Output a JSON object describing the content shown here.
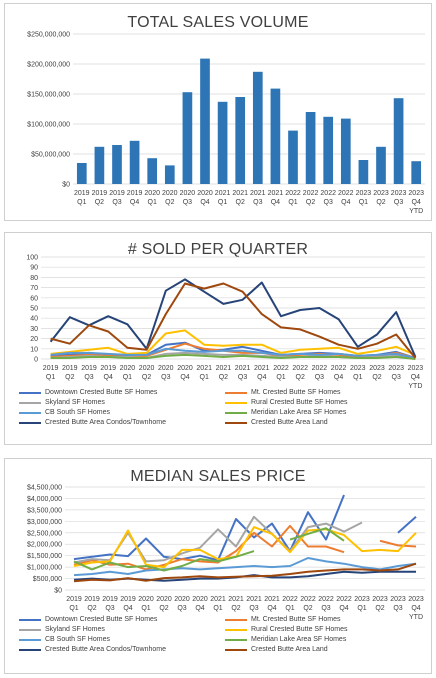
{
  "colors": {
    "bar": "#2e75b6",
    "grid": "#d9d9d9",
    "series": [
      "#4472c4",
      "#ed7d31",
      "#a5a5a5",
      "#ffc000",
      "#5b9bd5",
      "#70ad47",
      "#264478",
      "#9e480e"
    ]
  },
  "quarters": [
    "2019\nQ1",
    "2019\nQ2",
    "2019\nQ3",
    "2019\nQ4",
    "2020\nQ1",
    "2020\nQ2",
    "2020\nQ3",
    "2020\nQ4",
    "2021\nQ1",
    "2021\nQ2",
    "2021\nQ3",
    "2021\nQ4",
    "2022\nQ1",
    "2022\nQ2",
    "2022\nQ3",
    "2022\nQ4",
    "2023\nQ1",
    "2023\nQ2",
    "2023\nQ3",
    "2023\nQ4\nYTD"
  ],
  "chart_data": [
    {
      "type": "bar",
      "title": "TOTAL SALES VOLUME",
      "ylim": [
        0,
        250000000
      ],
      "yticks": [
        0,
        50000000,
        100000000,
        150000000,
        200000000,
        250000000
      ],
      "ytick_labels": [
        "$0",
        "$50,000,000",
        "$100,000,000",
        "$150,000,000",
        "$200,000,000",
        "$250,000,000"
      ],
      "categories": [
        "2019 Q1",
        "2019 Q2",
        "2019 Q3",
        "2019 Q4",
        "2020 Q1",
        "2020 Q2",
        "2020 Q3",
        "2020 Q4",
        "2021 Q1",
        "2021 Q2",
        "2021 Q3",
        "2021 Q4",
        "2022 Q1",
        "2022 Q2",
        "2022 Q3",
        "2022 Q4",
        "2023 Q1",
        "2023 Q2",
        "2023 Q3",
        "2023 Q4 YTD"
      ],
      "values": [
        35000000,
        62000000,
        65000000,
        72000000,
        43000000,
        31000000,
        153000000,
        209000000,
        137000000,
        145000000,
        187000000,
        159000000,
        89000000,
        120000000,
        112000000,
        109000000,
        40000000,
        62000000,
        143000000,
        38000000
      ],
      "grid": true,
      "legend": "none"
    },
    {
      "type": "line",
      "title": "# SOLD PER QUARTER",
      "ylim": [
        0,
        100
      ],
      "yticks": [
        0,
        10,
        20,
        30,
        40,
        50,
        60,
        70,
        80,
        90,
        100
      ],
      "ytick_labels": [
        "0",
        "10",
        "20",
        "30",
        "40",
        "50",
        "60",
        "70",
        "80",
        "90",
        "100"
      ],
      "categories": [
        "2019 Q1",
        "2019 Q2",
        "2019 Q3",
        "2019 Q4",
        "2020 Q1",
        "2020 Q2",
        "2020 Q3",
        "2020 Q4",
        "2021 Q1",
        "2021 Q2",
        "2021 Q3",
        "2021 Q4",
        "2022 Q1",
        "2022 Q2",
        "2022 Q3",
        "2022 Q4",
        "2023 Q1",
        "2023 Q2",
        "2023 Q3",
        "2023 Q4 YTD"
      ],
      "series": [
        {
          "name": "Downtown Crested Butte SF Homes",
          "values": [
            3,
            4,
            6,
            4,
            3,
            4,
            14,
            16,
            8,
            9,
            12,
            8,
            4,
            5,
            6,
            5,
            3,
            4,
            7,
            1
          ]
        },
        {
          "name": "Mt. Crested Butte SF Homes",
          "values": [
            2,
            3,
            4,
            3,
            2,
            3,
            9,
            15,
            10,
            8,
            6,
            6,
            3,
            4,
            5,
            4,
            2,
            3,
            6,
            1
          ]
        },
        {
          "name": "Skyland SF Homes",
          "values": [
            1,
            2,
            3,
            2,
            2,
            1,
            5,
            6,
            5,
            4,
            4,
            3,
            2,
            2,
            3,
            2,
            1,
            2,
            3,
            0
          ]
        },
        {
          "name": "Rural Crested Butte SF Homes",
          "values": [
            5,
            7,
            9,
            11,
            5,
            6,
            25,
            28,
            14,
            13,
            14,
            14,
            6,
            9,
            10,
            11,
            5,
            8,
            12,
            4
          ]
        },
        {
          "name": "CB South SF Homes",
          "values": [
            4,
            6,
            6,
            5,
            4,
            4,
            10,
            8,
            7,
            8,
            8,
            6,
            4,
            5,
            4,
            5,
            3,
            4,
            5,
            1
          ]
        },
        {
          "name": "Meridian Lake Area SF Homes",
          "values": [
            1,
            1,
            2,
            2,
            1,
            1,
            3,
            4,
            3,
            2,
            3,
            2,
            1,
            2,
            2,
            2,
            1,
            1,
            2,
            0
          ]
        },
        {
          "name": "Crested Butte Area Condos/Townhome",
          "values": [
            17,
            41,
            33,
            42,
            34,
            10,
            67,
            78,
            66,
            54,
            58,
            75,
            42,
            48,
            50,
            39,
            12,
            24,
            46,
            2
          ]
        },
        {
          "name": "Crested Butte Area Land",
          "values": [
            20,
            15,
            33,
            27,
            11,
            9,
            44,
            74,
            69,
            74,
            66,
            44,
            31,
            29,
            22,
            14,
            10,
            15,
            24,
            1
          ]
        }
      ],
      "grid": true,
      "legend": "bottom"
    },
    {
      "type": "line",
      "title": "MEDIAN SALES PRICE",
      "ylim": [
        0,
        4500000
      ],
      "yticks": [
        0,
        500000,
        1000000,
        1500000,
        2000000,
        2500000,
        3000000,
        3500000,
        4000000,
        4500000
      ],
      "ytick_labels": [
        "$0",
        "$500,000",
        "$1,000,000",
        "$1,500,000",
        "$2,000,000",
        "$2,500,000",
        "$3,000,000",
        "$3,500,000",
        "$4,000,000",
        "$4,500,000"
      ],
      "categories": [
        "2019 Q1",
        "2019 Q2",
        "2019 Q3",
        "2019 Q4",
        "2020 Q1",
        "2020 Q2",
        "2020 Q3",
        "2020 Q4",
        "2021 Q1",
        "2021 Q2",
        "2021 Q3",
        "2021 Q4",
        "2022 Q1",
        "2022 Q2",
        "2022 Q3",
        "2022 Q4",
        "2023 Q1",
        "2023 Q2",
        "2023 Q3",
        "2023 Q4 YTD"
      ],
      "series": [
        {
          "name": "Downtown Crested Butte SF Homes",
          "values": [
            1350000,
            1450000,
            1550000,
            1480000,
            2250000,
            1450000,
            1350000,
            1500000,
            1300000,
            3100000,
            2300000,
            2900000,
            1700000,
            3400000,
            2200000,
            4150000,
            null,
            null,
            2500000,
            3200000
          ]
        },
        {
          "name": "Mt. Crested Butte SF Homes",
          "values": [
            1100000,
            1300000,
            1100000,
            1150000,
            900000,
            1100000,
            1350000,
            1250000,
            1200000,
            1700000,
            2500000,
            1900000,
            2800000,
            1900000,
            1900000,
            1650000,
            null,
            2150000,
            1950000,
            1900000
          ]
        },
        {
          "name": "Skyland SF Homes",
          "values": [
            1200000,
            1350000,
            1300000,
            2500000,
            1250000,
            1300000,
            1600000,
            1850000,
            2650000,
            1900000,
            3200000,
            2450000,
            1700000,
            2750000,
            2900000,
            2550000,
            2950000,
            null,
            null,
            null
          ]
        },
        {
          "name": "Rural Crested Butte SF Homes",
          "values": [
            1050000,
            1200000,
            1250000,
            2600000,
            1100000,
            1000000,
            1750000,
            1750000,
            1350000,
            1450000,
            2750000,
            2450000,
            1650000,
            2600000,
            2650000,
            2400000,
            1700000,
            1750000,
            1700000,
            2500000
          ]
        },
        {
          "name": "CB South SF Homes",
          "values": [
            650000,
            700000,
            800000,
            700000,
            850000,
            900000,
            950000,
            900000,
            950000,
            1000000,
            1050000,
            1000000,
            1050000,
            1400000,
            1250000,
            1150000,
            1000000,
            900000,
            1050000,
            1150000
          ]
        },
        {
          "name": "Meridian Lake Area SF Homes",
          "values": [
            1250000,
            900000,
            1200000,
            1000000,
            1050000,
            850000,
            1050000,
            1350000,
            1250000,
            1450000,
            1700000,
            null,
            2200000,
            2450000,
            2700000,
            2150000,
            null,
            null,
            null,
            null
          ]
        },
        {
          "name": "Crested Butte Area Condos/Townhome",
          "values": [
            450000,
            500000,
            450000,
            500000,
            450000,
            400000,
            450000,
            500000,
            500000,
            550000,
            650000,
            550000,
            550000,
            600000,
            700000,
            800000,
            750000,
            800000,
            800000,
            800000
          ]
        },
        {
          "name": "Crested Butte Area Land",
          "values": [
            380000,
            450000,
            420000,
            520000,
            400000,
            520000,
            550000,
            600000,
            550000,
            580000,
            600000,
            620000,
            700000,
            800000,
            850000,
            900000,
            900000,
            850000,
            900000,
            1150000
          ]
        }
      ],
      "grid": true,
      "legend": "bottom"
    }
  ]
}
